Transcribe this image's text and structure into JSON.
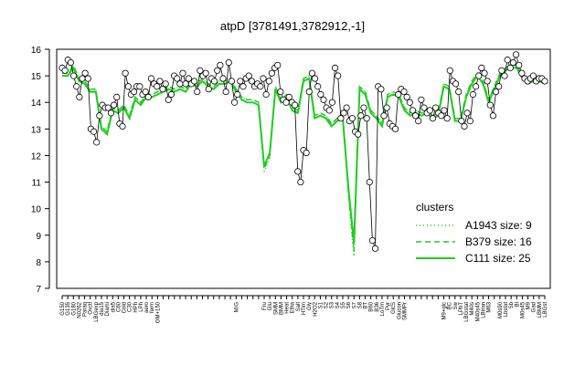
{
  "chart_data": {
    "type": "line",
    "title": "atpD [3781491,3782912,-1]",
    "xlabel": "",
    "ylabel": "",
    "ylim": [
      7,
      16
    ],
    "yticks": [
      7,
      8,
      9,
      10,
      11,
      12,
      13,
      14,
      15,
      16
    ],
    "grid": false,
    "legend": {
      "title": "clusters",
      "placement": "right",
      "entries": [
        {
          "name": "A1943 size: 9",
          "style": "dotted"
        },
        {
          "name": "B379 size: 16",
          "style": "dashed"
        },
        {
          "name": "C111 size: 25",
          "style": "solid"
        }
      ]
    },
    "x_tick_labels": [
      "G150",
      "G135",
      "G180",
      "N0262",
      "Paraq",
      "Oxctl",
      "LBGexp",
      "dia15",
      "Diami",
      "dia5",
      "C60",
      "Cold",
      "C30",
      "HPh",
      "LPh",
      "aero",
      "ferm",
      "OM+150",
      "OM+15",
      "UMA+120",
      "UM+120",
      "FUM+30",
      "M+G+150",
      "M+G+15",
      "M+G+60",
      "M+G+90",
      "OM+90",
      "OM+120",
      "MG+150",
      "MG+60",
      "MG+30",
      "M/G",
      "M/G+15",
      "M/G+30",
      "M/G+60",
      "Mal",
      "Fru",
      "Glu",
      "SMM",
      "BMM",
      "Heat",
      "Etha",
      "Salt",
      "HTim",
      "Gly",
      "H2O2",
      "S1",
      "S2",
      "S3",
      "S4",
      "S5",
      "S6",
      "S7",
      "S8",
      "BT",
      "B60",
      "B36",
      "LoTm",
      "Pyr",
      "GlcS",
      "Glucon",
      "SMMPr",
      "T1",
      "T2",
      "T3",
      "T4",
      "T5",
      "T6",
      "M9+glc",
      "BC",
      "Sw",
      "LPhT",
      "LBGstat",
      "M40s",
      "M40s45",
      "LBtran",
      "M63",
      "M40s30",
      "M0s90",
      "Lbstat",
      "Sb",
      "Bl",
      "M0s45",
      "M9",
      "Gad",
      "LBMM",
      "LBGst"
    ],
    "x_tick_labels_shown": [
      "G150",
      "G135",
      "G180",
      "N0262",
      "Paraq",
      "Oxctl",
      "LBGexp",
      "dia15",
      "Diami",
      "dia5",
      "C60",
      "Cold",
      "C30",
      "HPh",
      "LPh",
      "aero",
      "ferm",
      "OM+150",
      "M/G",
      "Fru",
      "Glu",
      "SMM",
      "BMM",
      "Heat",
      "Etha",
      "Salt",
      "HTim",
      "Gly",
      "H2O2",
      "S1",
      "S2",
      "S3",
      "S4",
      "S5",
      "S6",
      "S7",
      "S8",
      "BT",
      "B60",
      "B36",
      "LoTm",
      "Pyr",
      "GlcS",
      "Glucon",
      "SMMPr",
      "M9+glc",
      "BC",
      "Sw",
      "LPhT",
      "LBGstat",
      "M40s",
      "LBtran",
      "M63",
      "M40s45",
      "M0s90",
      "Lbstat",
      "Sb",
      "Bl",
      "M0s45",
      "M9",
      "Gad",
      "LBMM",
      "LBGst"
    ],
    "series": [
      {
        "name": "",
        "role": "points",
        "values": [
          15.3,
          15.2,
          15.6,
          15.5,
          15.0,
          14.6,
          14.2,
          14.9,
          15.1,
          14.9,
          13.0,
          12.9,
          12.5,
          13.5,
          13.9,
          13.8,
          13.8,
          13.6,
          13.9,
          14.2,
          13.2,
          13.1,
          15.1,
          14.6,
          14.3,
          14.4,
          14.6,
          14.6,
          14.3,
          14.4,
          14.2,
          14.9,
          14.7,
          14.6,
          14.8,
          14.5,
          14.7,
          14.1,
          14.3,
          15.0,
          14.9,
          14.7,
          15.1,
          14.7,
          14.9,
          14.7,
          14.8,
          14.4,
          15.2,
          15.0,
          15.1,
          14.5,
          14.9,
          14.8,
          15.2,
          15.4,
          14.9,
          14.4,
          15.5,
          14.8,
          14.0,
          14.3,
          14.8,
          14.6,
          14.9,
          15.0,
          14.8,
          14.6,
          14.7,
          14.6,
          14.9,
          14.3,
          14.8,
          15.1,
          15.3,
          15.4,
          14.4,
          14.1,
          14.0,
          14.2,
          14.0,
          13.9,
          11.4,
          11.0,
          12.2,
          12.1,
          14.4,
          15.1,
          14.9,
          14.6,
          14.3,
          14.1,
          13.8,
          13.7,
          14.0,
          15.3,
          15.0,
          13.4,
          13.6,
          13.8,
          13.3,
          13.4,
          12.9,
          12.8,
          13.5,
          13.8,
          13.4,
          11.0,
          8.8,
          8.5,
          14.6,
          14.5,
          13.5,
          13.8,
          13.2,
          13.1,
          13.0,
          14.3,
          14.5,
          14.4,
          14.2,
          14.0,
          13.7,
          13.5,
          13.3,
          14.1,
          13.8,
          13.6,
          13.7,
          13.4,
          13.8,
          13.6,
          13.5,
          13.7,
          13.4,
          15.2,
          14.8,
          14.7,
          14.4,
          13.3,
          13.1,
          13.6,
          13.3,
          14.3,
          14.6,
          15.0,
          15.3,
          15.1,
          14.8,
          13.9,
          13.5,
          14.4,
          14.6,
          15.2,
          15.0,
          15.6,
          15.3,
          15.5,
          15.8,
          15.4,
          15.1,
          14.9,
          14.8,
          14.9,
          15.0,
          14.8,
          14.9,
          14.9,
          14.8
        ]
      },
      {
        "name": "A1943 size: 9",
        "role": "line",
        "values": [
          15.1,
          15.1,
          15.3,
          14.9,
          14.8,
          14.4,
          14.5,
          13.1,
          12.9,
          13.8,
          13.7,
          13.9,
          13.5,
          14.2,
          14.0,
          14.3,
          14.3,
          14.4,
          14.5,
          14.6,
          14.5,
          14.6,
          14.5,
          14.8,
          14.7,
          14.9,
          14.7,
          14.6,
          14.8,
          14.8,
          14.9,
          14.5,
          14.2,
          14.1,
          14.1,
          14.0,
          11.4,
          11.9,
          14.6,
          14.1,
          14.3,
          13.8,
          13.7,
          14.9,
          15.0,
          13.5,
          13.6,
          13.5,
          13.2,
          13.4,
          13.5,
          10.5,
          8.2,
          14.6,
          14.4,
          13.7,
          13.5,
          13.2,
          14.3,
          14.4,
          14.3,
          13.8,
          13.6,
          13.7,
          13.6,
          13.7,
          13.5,
          13.6,
          14.7,
          14.6,
          13.4,
          13.4,
          14.3,
          14.8,
          15.1,
          14.8,
          14.1,
          14.6,
          15.1,
          15.3,
          15.4,
          15.4,
          15.0,
          14.8,
          14.9,
          14.9,
          14.8
        ]
      },
      {
        "name": "B379 size: 16",
        "role": "line",
        "values": [
          15.1,
          15.1,
          15.4,
          14.9,
          14.8,
          14.5,
          14.5,
          13.1,
          12.9,
          13.8,
          13.7,
          13.9,
          13.5,
          14.2,
          14.0,
          14.3,
          14.3,
          14.4,
          14.5,
          14.6,
          14.5,
          14.6,
          14.5,
          14.8,
          14.7,
          14.9,
          14.7,
          14.6,
          14.8,
          14.8,
          14.9,
          14.5,
          14.2,
          14.1,
          14.1,
          14.0,
          11.5,
          12.0,
          14.6,
          14.1,
          14.3,
          13.8,
          13.7,
          14.9,
          15.0,
          13.5,
          13.6,
          13.5,
          13.2,
          13.4,
          13.5,
          10.6,
          8.4,
          14.6,
          14.4,
          13.7,
          13.5,
          13.2,
          14.3,
          14.4,
          14.3,
          13.8,
          13.6,
          13.7,
          13.6,
          13.7,
          13.5,
          13.6,
          14.7,
          14.6,
          13.4,
          13.4,
          14.3,
          14.8,
          15.1,
          14.8,
          14.1,
          14.6,
          15.1,
          15.3,
          15.4,
          15.4,
          15.0,
          14.8,
          14.9,
          14.9,
          14.8
        ]
      },
      {
        "name": "C111 size: 25",
        "role": "line",
        "values": [
          15.0,
          15.0,
          15.3,
          14.8,
          14.7,
          14.4,
          14.4,
          13.0,
          12.8,
          13.7,
          13.6,
          13.8,
          13.4,
          14.1,
          13.9,
          14.2,
          14.2,
          14.3,
          14.4,
          14.5,
          14.4,
          14.5,
          14.4,
          14.7,
          14.6,
          14.8,
          14.6,
          14.5,
          14.7,
          14.7,
          14.8,
          14.4,
          14.1,
          14.0,
          14.0,
          13.9,
          11.6,
          12.1,
          14.5,
          14.0,
          14.2,
          13.7,
          13.6,
          14.8,
          14.9,
          13.4,
          13.5,
          13.4,
          13.1,
          13.3,
          13.4,
          10.8,
          8.7,
          14.5,
          14.3,
          13.6,
          13.4,
          13.1,
          14.2,
          14.3,
          14.2,
          13.7,
          13.5,
          13.6,
          13.5,
          13.6,
          13.4,
          13.5,
          14.6,
          14.5,
          13.3,
          13.3,
          14.2,
          14.7,
          15.0,
          14.7,
          14.0,
          14.5,
          15.0,
          15.2,
          15.3,
          15.3,
          14.9,
          14.7,
          14.8,
          14.8,
          14.7
        ]
      }
    ],
    "colors": {
      "points_line": "#000000",
      "cluster_line": "#22cc22",
      "point_fill": "#ffffff"
    }
  }
}
